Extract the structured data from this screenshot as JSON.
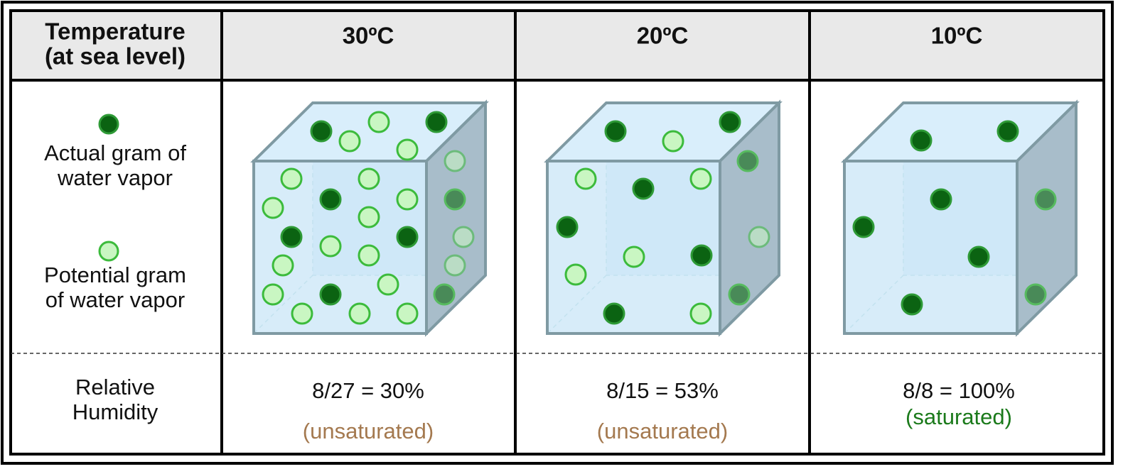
{
  "header": {
    "label_lines": [
      "Temperature",
      "(at sea level)"
    ],
    "columns": [
      "30ºC",
      "20ºC",
      "10ºC"
    ]
  },
  "legend": {
    "actual_lines": [
      "Actual gram of",
      "water vapor"
    ],
    "potential_lines": [
      "Potential gram",
      "of water vapor"
    ]
  },
  "humidity": {
    "label_lines": [
      "Relative",
      "Humidity"
    ],
    "cells": [
      {
        "formula": "8/27 = 30%",
        "status": "(unsaturated)"
      },
      {
        "formula": "8/15 = 53%",
        "status": "(unsaturated)"
      },
      {
        "formula": "8/8 = 100%",
        "status": "(saturated)"
      }
    ]
  }
}
